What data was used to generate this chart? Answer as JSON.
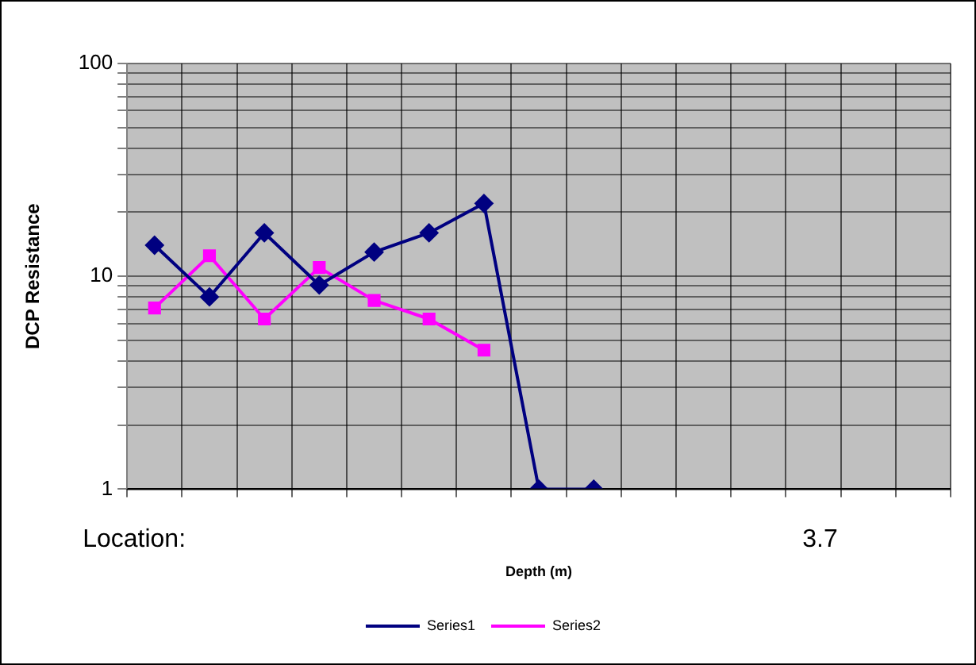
{
  "chart_data": {
    "type": "line",
    "xlabel": "Depth (m)",
    "ylabel": "DCP Resistance",
    "annotations": [
      "Location:",
      "3.7"
    ],
    "categories": [
      null,
      null,
      null,
      null,
      null,
      null,
      null,
      null,
      null,
      null,
      null,
      null,
      null,
      null,
      null
    ],
    "series": [
      {
        "name": "Series1",
        "color": "#000080",
        "marker": "diamond",
        "values": [
          14,
          8,
          16,
          9.1,
          13,
          16,
          22,
          1,
          1,
          null,
          null,
          null,
          null,
          null,
          null
        ]
      },
      {
        "name": "Series2",
        "color": "#ff00ff",
        "marker": "square",
        "values": [
          7.1,
          12.5,
          6.3,
          11,
          7.7,
          6.3,
          4.5,
          null,
          null,
          null,
          null,
          null,
          null,
          null,
          null
        ]
      }
    ],
    "log": "y",
    "ylim": [
      1,
      100
    ],
    "yticks": [
      1,
      {
        "value": 2,
        "label": null
      },
      {
        "value": 3,
        "label": null
      },
      {
        "value": 4,
        "label": null
      },
      {
        "value": 5,
        "label": null
      },
      {
        "value": 6,
        "label": null
      },
      {
        "value": 7,
        "label": null
      },
      {
        "value": 8,
        "label": null
      },
      {
        "value": 9,
        "label": null
      },
      10,
      {
        "value": 20,
        "label": null
      },
      {
        "value": 30,
        "label": null
      },
      {
        "value": 40,
        "label": null
      },
      {
        "value": 50,
        "label": null
      },
      {
        "value": 60,
        "label": null
      },
      {
        "value": 70,
        "label": null
      },
      {
        "value": 80,
        "label": null
      },
      {
        "value": 90,
        "label": null
      },
      100
    ],
    "grid": true,
    "legend": "bottom",
    "tick_labels": "y"
  }
}
